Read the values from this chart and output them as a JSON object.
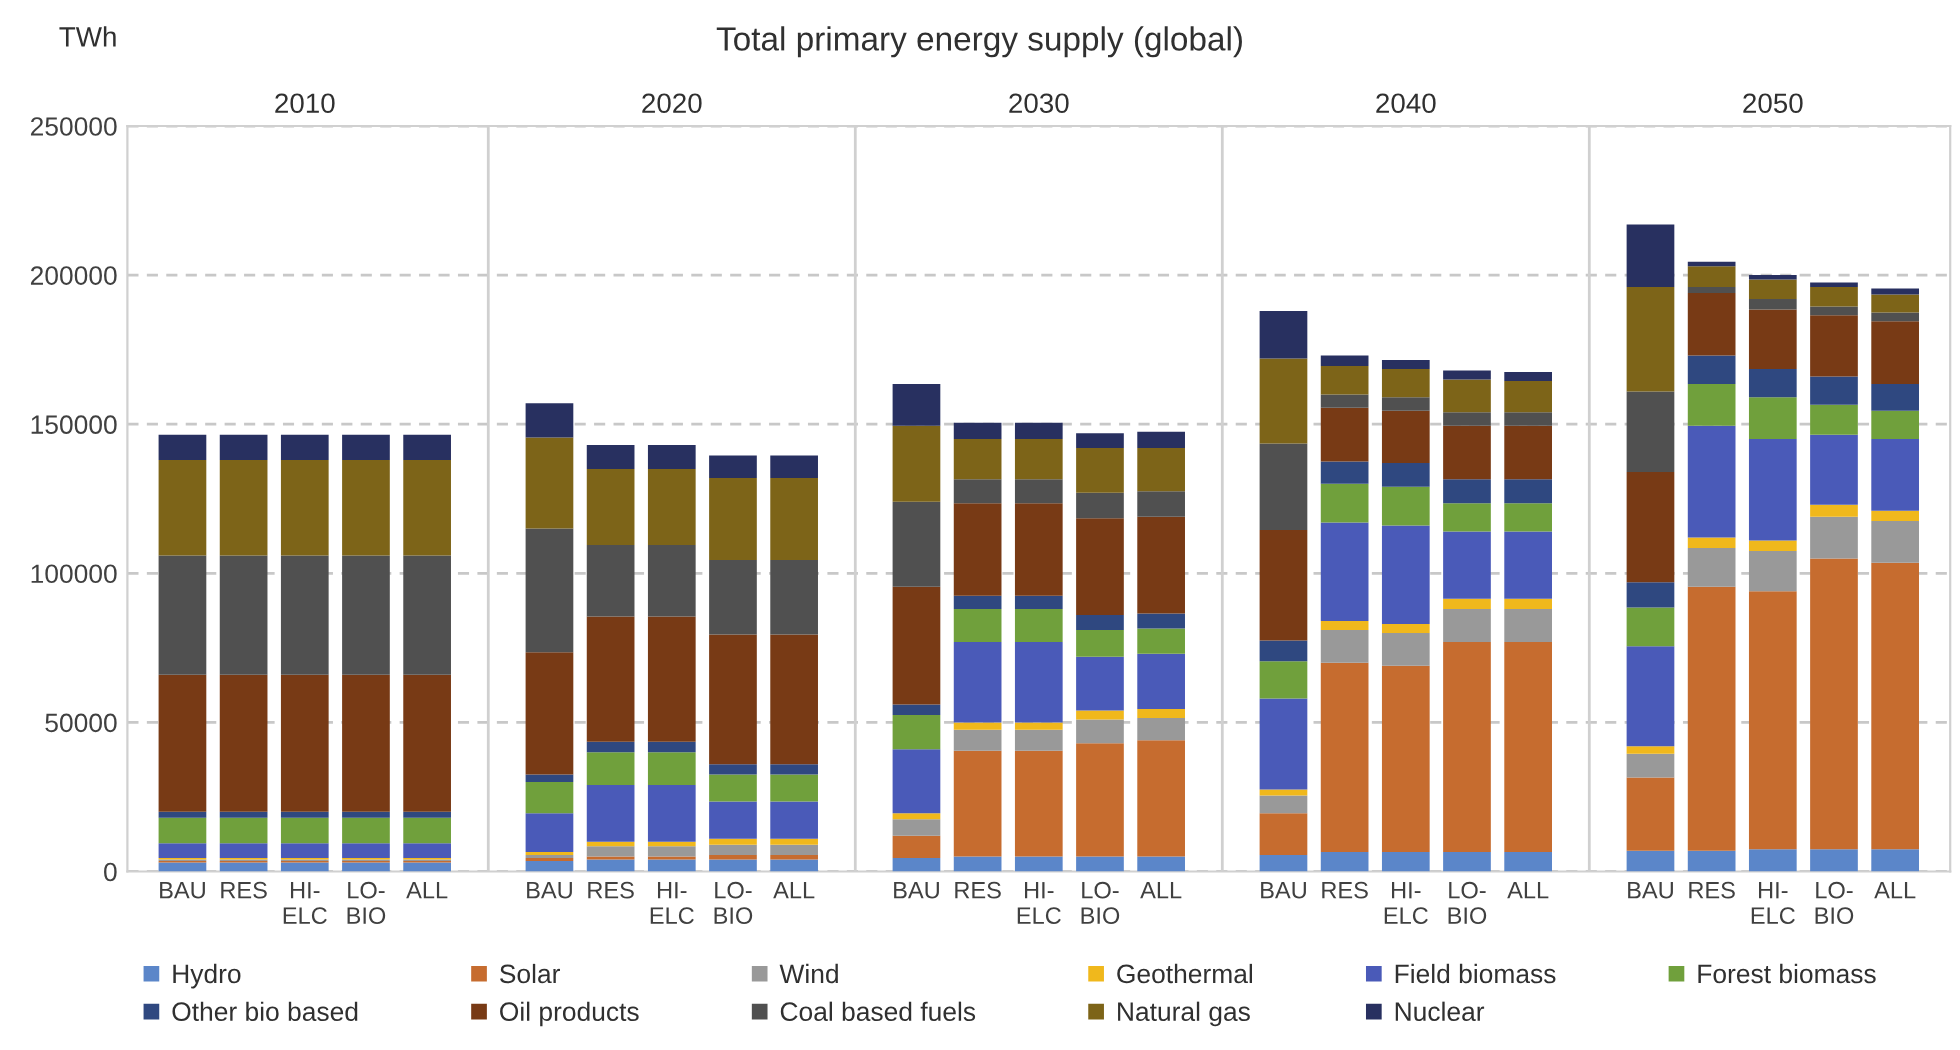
{
  "chart_data": {
    "type": "bar",
    "stacked": true,
    "title": "Total primary energy supply (global)",
    "ylabel": "TWh",
    "annotations": [
      "2010",
      "2020",
      "2030",
      "2040",
      "2050"
    ],
    "categories": [
      "BAU",
      "RES",
      "HI-\nELC",
      "LO-\nBIO",
      "ALL",
      "BAU",
      "RES",
      "HI-\nELC",
      "LO-\nBIO",
      "ALL",
      "BAU",
      "RES",
      "HI-\nELC",
      "LO-\nBIO",
      "ALL",
      "BAU",
      "RES",
      "HI-\nELC",
      "LO-\nBIO",
      "ALL",
      "BAU",
      "RES",
      "HI-\nELC",
      "LO-\nBIO",
      "ALL"
    ],
    "ylim": [
      0,
      250000
    ],
    "yticks": [
      0,
      50000,
      100000,
      150000,
      200000,
      250000
    ],
    "grid": "y",
    "legend": "bottom",
    "series": [
      {
        "name": "Hydro",
        "color": "#5b86c9",
        "values": [
          3000,
          3000,
          3000,
          3000,
          3000,
          3500,
          4000,
          4000,
          4000,
          4000,
          4500,
          5000,
          5000,
          5000,
          5000,
          5500,
          6500,
          6500,
          6500,
          6500,
          7000,
          7000,
          7500,
          7500,
          7500
        ]
      },
      {
        "name": "Solar",
        "color": "#c66c2f",
        "values": [
          500,
          500,
          500,
          500,
          500,
          1000,
          1000,
          1000,
          1500,
          1500,
          7500,
          35500,
          35500,
          38000,
          39000,
          14000,
          63500,
          62500,
          70500,
          70500,
          24500,
          88500,
          86500,
          97500,
          96000
        ]
      },
      {
        "name": "Wind",
        "color": "#999999",
        "values": [
          500,
          500,
          500,
          500,
          500,
          1000,
          3500,
          3500,
          3500,
          3500,
          5500,
          7000,
          7000,
          8000,
          7500,
          6000,
          11000,
          11000,
          11000,
          11000,
          8000,
          13000,
          13500,
          14000,
          14000
        ]
      },
      {
        "name": "Geothermal",
        "color": "#f0b81c",
        "values": [
          500,
          500,
          500,
          500,
          500,
          1000,
          1500,
          1500,
          2000,
          2000,
          2000,
          2500,
          2500,
          3000,
          3000,
          2000,
          3000,
          3000,
          3500,
          3500,
          2500,
          3500,
          3500,
          4000,
          3500
        ]
      },
      {
        "name": "Field biomass",
        "color": "#4a5ab8",
        "values": [
          5000,
          5000,
          5000,
          5000,
          5000,
          13000,
          19000,
          19000,
          12500,
          12500,
          21500,
          27000,
          27000,
          18000,
          18500,
          30500,
          33000,
          33000,
          22500,
          22500,
          33500,
          37500,
          34000,
          23500,
          24000
        ]
      },
      {
        "name": "Forest biomass",
        "color": "#70a03c",
        "values": [
          8500,
          8500,
          8500,
          8500,
          8500,
          10500,
          11000,
          11000,
          9000,
          9000,
          11500,
          11000,
          11000,
          9000,
          8500,
          12500,
          13000,
          13000,
          9500,
          9500,
          13000,
          14000,
          14000,
          10000,
          9500
        ]
      },
      {
        "name": "Other bio based",
        "color": "#2f4880",
        "values": [
          2000,
          2000,
          2000,
          2000,
          2000,
          2500,
          3500,
          3500,
          3500,
          3500,
          3500,
          4500,
          4500,
          5000,
          5000,
          7000,
          7500,
          8000,
          8000,
          8000,
          8500,
          9500,
          9500,
          9500,
          9000
        ]
      },
      {
        "name": "Oil products",
        "color": "#783a15",
        "values": [
          46000,
          46000,
          46000,
          46000,
          46000,
          41000,
          42000,
          42000,
          43500,
          43500,
          39500,
          31000,
          31000,
          32500,
          32500,
          37000,
          18000,
          17500,
          18000,
          18000,
          37000,
          21000,
          20000,
          20500,
          21000
        ]
      },
      {
        "name": "Coal based fuels",
        "color": "#505050",
        "values": [
          40000,
          40000,
          40000,
          40000,
          40000,
          41500,
          24000,
          24000,
          25000,
          25000,
          28500,
          8000,
          8000,
          8500,
          8500,
          29000,
          4500,
          4500,
          4500,
          4500,
          27000,
          2000,
          3500,
          3000,
          3000
        ]
      },
      {
        "name": "Natural gas",
        "color": "#7d6418",
        "values": [
          32000,
          32000,
          32000,
          32000,
          32000,
          30500,
          25500,
          25500,
          27500,
          27500,
          25500,
          13500,
          13500,
          15000,
          14500,
          28500,
          9500,
          9500,
          11000,
          10500,
          35000,
          7000,
          6500,
          6500,
          6000
        ]
      },
      {
        "name": "Nuclear",
        "color": "#283060",
        "values": [
          8500,
          8500,
          8500,
          8500,
          8500,
          11500,
          8000,
          8000,
          7500,
          7500,
          14000,
          5500,
          5500,
          5000,
          5500,
          16000,
          3500,
          3000,
          3000,
          3000,
          21000,
          1500,
          1500,
          1500,
          2000
        ]
      }
    ]
  }
}
